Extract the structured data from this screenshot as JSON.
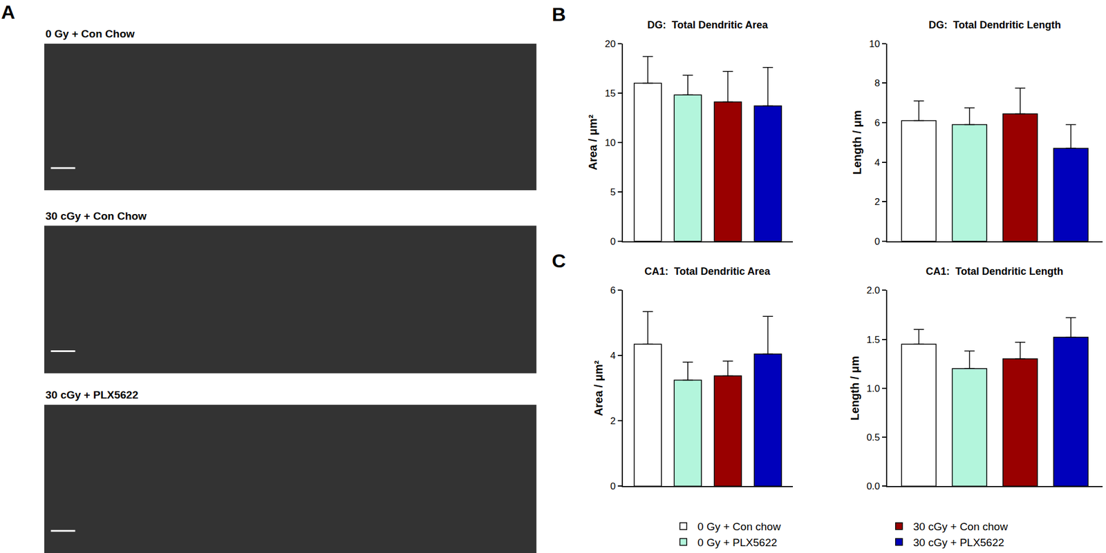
{
  "panel_A": {
    "label": "A",
    "images": [
      {
        "title": "0 Gy + Con Chow"
      },
      {
        "title": "30 cGy + Con Chow"
      },
      {
        "title": "30 cGy + PLX5622"
      }
    ]
  },
  "chart_data": [
    {
      "type": "bar",
      "panel_label": "B",
      "title": "DG:  Total Dendritic Area",
      "y_label": "Area / μm²",
      "categories": [
        null
      ],
      "tick_labels": "y",
      "grid": false,
      "ylim": [
        0,
        20
      ],
      "yticks": [
        0,
        5,
        10,
        15,
        20
      ],
      "series": [
        {
          "name": "0 Gy + Con chow",
          "color": "#ffffff",
          "values": [
            16.0
          ],
          "error": [
            2.7
          ]
        },
        {
          "name": "0 Gy + PLX5622",
          "color": "#b3f5dc",
          "values": [
            14.8
          ],
          "error": [
            2.0
          ]
        },
        {
          "name": "30 cGy + Con chow",
          "color": "#990000",
          "values": [
            14.1
          ],
          "error": [
            3.1
          ]
        },
        {
          "name": "30 cGy + PLX5622",
          "color": "#0000bb",
          "values": [
            13.7
          ],
          "error": [
            3.9
          ]
        }
      ]
    },
    {
      "type": "bar",
      "title": "DG:  Total Dendritic Length",
      "y_label": "Length / μm",
      "categories": [
        null
      ],
      "tick_labels": "y",
      "grid": false,
      "ylim": [
        0,
        10
      ],
      "yticks": [
        0,
        2,
        4,
        6,
        8,
        10
      ],
      "series": [
        {
          "name": "0 Gy + Con chow",
          "color": "#ffffff",
          "values": [
            6.1
          ],
          "error": [
            1.0
          ]
        },
        {
          "name": "0 Gy + PLX5622",
          "color": "#b3f5dc",
          "values": [
            5.9
          ],
          "error": [
            0.85
          ]
        },
        {
          "name": "30 cGy + Con chow",
          "color": "#990000",
          "values": [
            6.45
          ],
          "error": [
            1.3
          ]
        },
        {
          "name": "30 cGy + PLX5622",
          "color": "#0000bb",
          "values": [
            4.7
          ],
          "error": [
            1.2
          ]
        }
      ]
    },
    {
      "type": "bar",
      "panel_label": "C",
      "title": "CA1:  Total Dendritic Area",
      "y_label": "Area / μm²",
      "categories": [
        null
      ],
      "tick_labels": "y",
      "grid": false,
      "ylim": [
        0,
        6
      ],
      "yticks": [
        0,
        2,
        4,
        6
      ],
      "series": [
        {
          "name": "0 Gy + Con chow",
          "color": "#ffffff",
          "values": [
            4.35
          ],
          "error": [
            1.0
          ]
        },
        {
          "name": "0 Gy + PLX5622",
          "color": "#b3f5dc",
          "values": [
            3.25
          ],
          "error": [
            0.55
          ]
        },
        {
          "name": "30 cGy + Con chow",
          "color": "#990000",
          "values": [
            3.38
          ],
          "error": [
            0.45
          ]
        },
        {
          "name": "30 cGy + PLX5622",
          "color": "#0000bb",
          "values": [
            4.05
          ],
          "error": [
            1.15
          ]
        }
      ]
    },
    {
      "type": "bar",
      "title": "CA1:  Total Dendritic Length",
      "y_label": "Length / μm",
      "categories": [
        null
      ],
      "tick_labels": "y",
      "grid": false,
      "legend": "bottom",
      "ylim": [
        0,
        2
      ],
      "yticks": [
        {
          "value": 0,
          "label": "0.0"
        },
        {
          "value": 0.5,
          "label": "0.5"
        },
        {
          "value": 1,
          "label": "1.0"
        },
        {
          "value": 1.5,
          "label": "1.5"
        },
        {
          "value": 2,
          "label": "2.0"
        }
      ],
      "series": [
        {
          "name": "0 Gy + Con chow",
          "color": "#ffffff",
          "values": [
            1.45
          ],
          "error": [
            0.15
          ]
        },
        {
          "name": "0 Gy + PLX5622",
          "color": "#b3f5dc",
          "values": [
            1.2
          ],
          "error": [
            0.18
          ]
        },
        {
          "name": "30 cGy + Con chow",
          "color": "#990000",
          "values": [
            1.3
          ],
          "error": [
            0.17
          ]
        },
        {
          "name": "30 cGy + PLX5622",
          "color": "#0000bb",
          "values": [
            1.52
          ],
          "error": [
            0.2
          ]
        }
      ]
    }
  ]
}
